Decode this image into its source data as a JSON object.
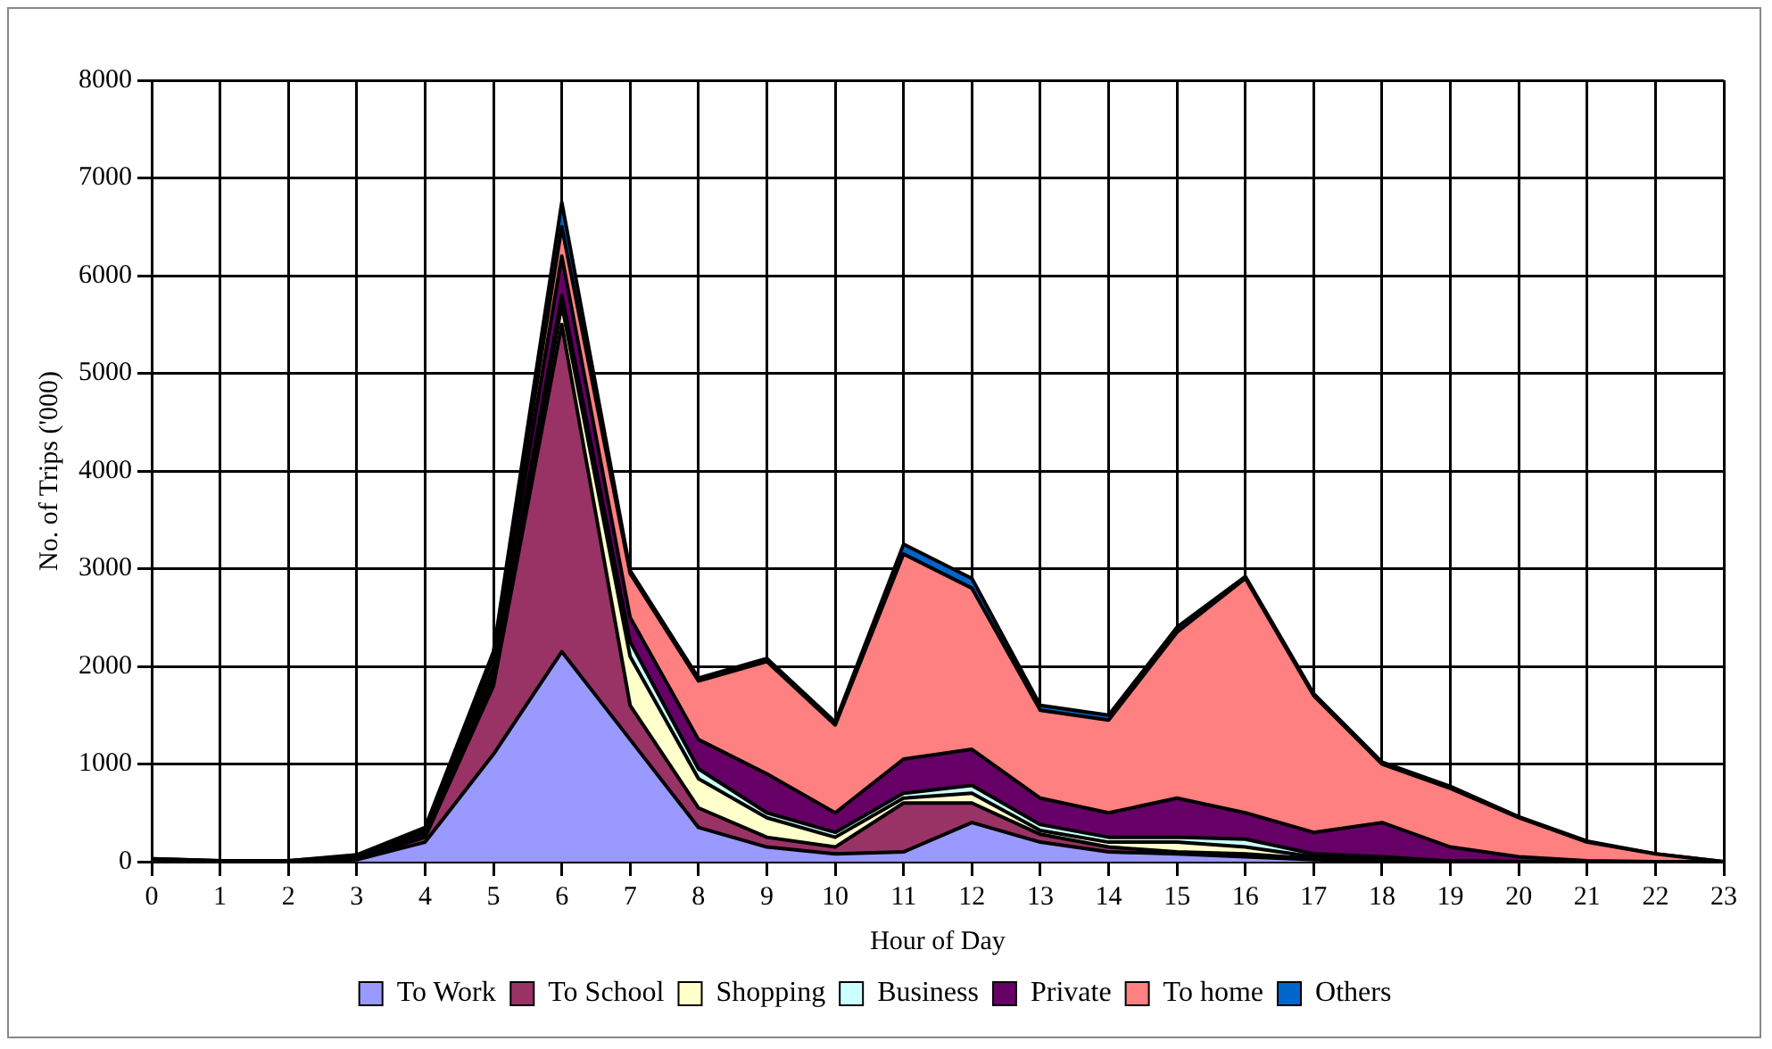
{
  "chart_data": {
    "type": "area",
    "stacked": true,
    "xlabel": "Hour of Day",
    "ylabel": "No. of Trips ('000)",
    "x": [
      0,
      1,
      2,
      3,
      4,
      5,
      6,
      7,
      8,
      9,
      10,
      11,
      12,
      13,
      14,
      15,
      16,
      17,
      18,
      19,
      20,
      21,
      22,
      23
    ],
    "xlim": [
      0,
      23
    ],
    "xticks": [
      0,
      1,
      2,
      3,
      4,
      5,
      6,
      7,
      8,
      9,
      10,
      11,
      12,
      13,
      14,
      15,
      16,
      17,
      18,
      19,
      20,
      21,
      22,
      23
    ],
    "ylim": [
      0,
      8000
    ],
    "yticks": [
      0,
      1000,
      2000,
      3000,
      4000,
      5000,
      6000,
      7000,
      8000
    ],
    "grid": true,
    "legend": "bottom",
    "marker": "none",
    "series": [
      {
        "name": "To Work",
        "color": "#9999ff",
        "values": [
          20,
          5,
          5,
          20,
          200,
          1100,
          2150,
          1250,
          350,
          150,
          80,
          100,
          400,
          200,
          100,
          80,
          50,
          20,
          10,
          5,
          0,
          0,
          0,
          0
        ]
      },
      {
        "name": "To School",
        "color": "#993366",
        "values": [
          0,
          0,
          0,
          10,
          50,
          700,
          3350,
          350,
          200,
          100,
          70,
          500,
          200,
          80,
          50,
          20,
          30,
          10,
          10,
          0,
          0,
          0,
          0,
          0
        ]
      },
      {
        "name": "Shopping",
        "color": "#ffffcc",
        "values": [
          0,
          0,
          0,
          0,
          30,
          50,
          200,
          500,
          300,
          200,
          100,
          50,
          100,
          40,
          50,
          100,
          70,
          20,
          10,
          0,
          0,
          0,
          0,
          0
        ]
      },
      {
        "name": "Business",
        "color": "#ccffff",
        "values": [
          0,
          0,
          0,
          0,
          10,
          50,
          100,
          150,
          100,
          50,
          50,
          50,
          80,
          60,
          50,
          50,
          80,
          30,
          20,
          0,
          0,
          0,
          0,
          0
        ]
      },
      {
        "name": "Private",
        "color": "#660066",
        "values": [
          0,
          0,
          0,
          0,
          30,
          100,
          400,
          250,
          300,
          400,
          200,
          350,
          370,
          270,
          250,
          400,
          270,
          220,
          350,
          145,
          50,
          10,
          0,
          0
        ]
      },
      {
        "name": "To home",
        "color": "#ff8080",
        "values": [
          10,
          5,
          5,
          30,
          20,
          100,
          300,
          450,
          600,
          1150,
          900,
          2100,
          1650,
          900,
          950,
          1700,
          2400,
          1400,
          600,
          600,
          400,
          190,
          80,
          0
        ]
      },
      {
        "name": "Others",
        "color": "#0066cc",
        "values": [
          0,
          0,
          0,
          10,
          10,
          50,
          250,
          30,
          30,
          30,
          30,
          100,
          100,
          50,
          50,
          50,
          20,
          20,
          20,
          20,
          10,
          10,
          0,
          0
        ]
      }
    ]
  }
}
